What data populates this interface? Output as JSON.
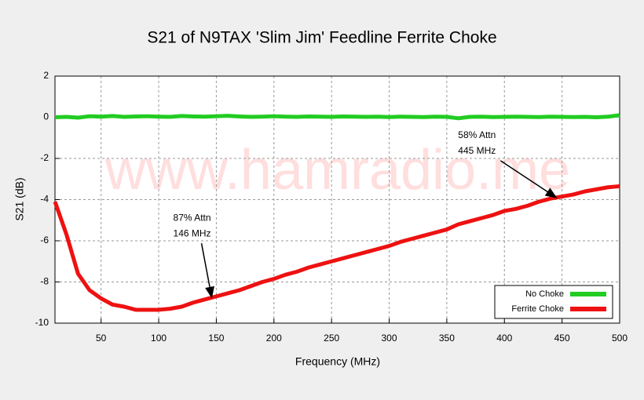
{
  "chart_data": {
    "type": "line",
    "title": "S21 of N9TAX 'Slim Jim' Feedline Ferrite Choke",
    "xlabel": "Frequency (MHz)",
    "ylabel": "S21 (dB)",
    "watermark": "www.hamradio.me",
    "x": [
      10,
      20,
      30,
      40,
      50,
      60,
      70,
      80,
      90,
      100,
      110,
      120,
      130,
      140,
      150,
      160,
      170,
      180,
      190,
      200,
      210,
      220,
      230,
      240,
      250,
      260,
      270,
      280,
      290,
      300,
      310,
      320,
      330,
      340,
      350,
      360,
      370,
      380,
      390,
      400,
      410,
      420,
      430,
      440,
      450,
      460,
      470,
      480,
      490,
      500
    ],
    "series": [
      {
        "name": "No Choke",
        "color": "#22cc22",
        "values": [
          0.0,
          0.02,
          -0.02,
          0.05,
          0.03,
          0.06,
          0.02,
          0.04,
          0.05,
          0.03,
          0.02,
          0.06,
          0.04,
          0.03,
          0.05,
          0.07,
          0.04,
          0.02,
          0.03,
          0.05,
          0.03,
          0.02,
          0.04,
          0.03,
          0.02,
          0.04,
          0.03,
          0.02,
          0.03,
          0.01,
          0.03,
          0.02,
          0.01,
          0.03,
          0.02,
          -0.05,
          0.02,
          0.03,
          0.01,
          0.02,
          0.03,
          0.02,
          0.01,
          0.03,
          0.02,
          0.01,
          0.02,
          0.0,
          0.03,
          0.1
        ]
      },
      {
        "name": "Ferrite Choke",
        "color": "#ee1111",
        "values": [
          -4.1,
          -5.7,
          -7.6,
          -8.4,
          -8.8,
          -9.1,
          -9.2,
          -9.35,
          -9.35,
          -9.35,
          -9.3,
          -9.2,
          -9.0,
          -8.85,
          -8.7,
          -8.55,
          -8.4,
          -8.2,
          -8.0,
          -7.85,
          -7.65,
          -7.5,
          -7.3,
          -7.15,
          -7.0,
          -6.85,
          -6.7,
          -6.55,
          -6.4,
          -6.25,
          -6.05,
          -5.9,
          -5.75,
          -5.6,
          -5.45,
          -5.2,
          -5.05,
          -4.9,
          -4.75,
          -4.55,
          -4.45,
          -4.3,
          -4.1,
          -3.95,
          -3.85,
          -3.75,
          -3.6,
          -3.5,
          -3.4,
          -3.35
        ]
      }
    ],
    "xlim": [
      10,
      500
    ],
    "ylim": [
      -10,
      2
    ],
    "xticks": [
      50,
      100,
      150,
      200,
      250,
      300,
      350,
      400,
      450,
      500
    ],
    "yticks": [
      2,
      0,
      -2,
      -4,
      -6,
      -8,
      -10
    ],
    "grid": true,
    "legend": "lower right",
    "annotations": [
      {
        "lines": [
          "87% Attn",
          "146 MHz"
        ],
        "x": 146,
        "y": -8.75
      },
      {
        "lines": [
          "58% Attn",
          "445 MHz"
        ],
        "x": 445,
        "y": -3.9
      }
    ]
  }
}
